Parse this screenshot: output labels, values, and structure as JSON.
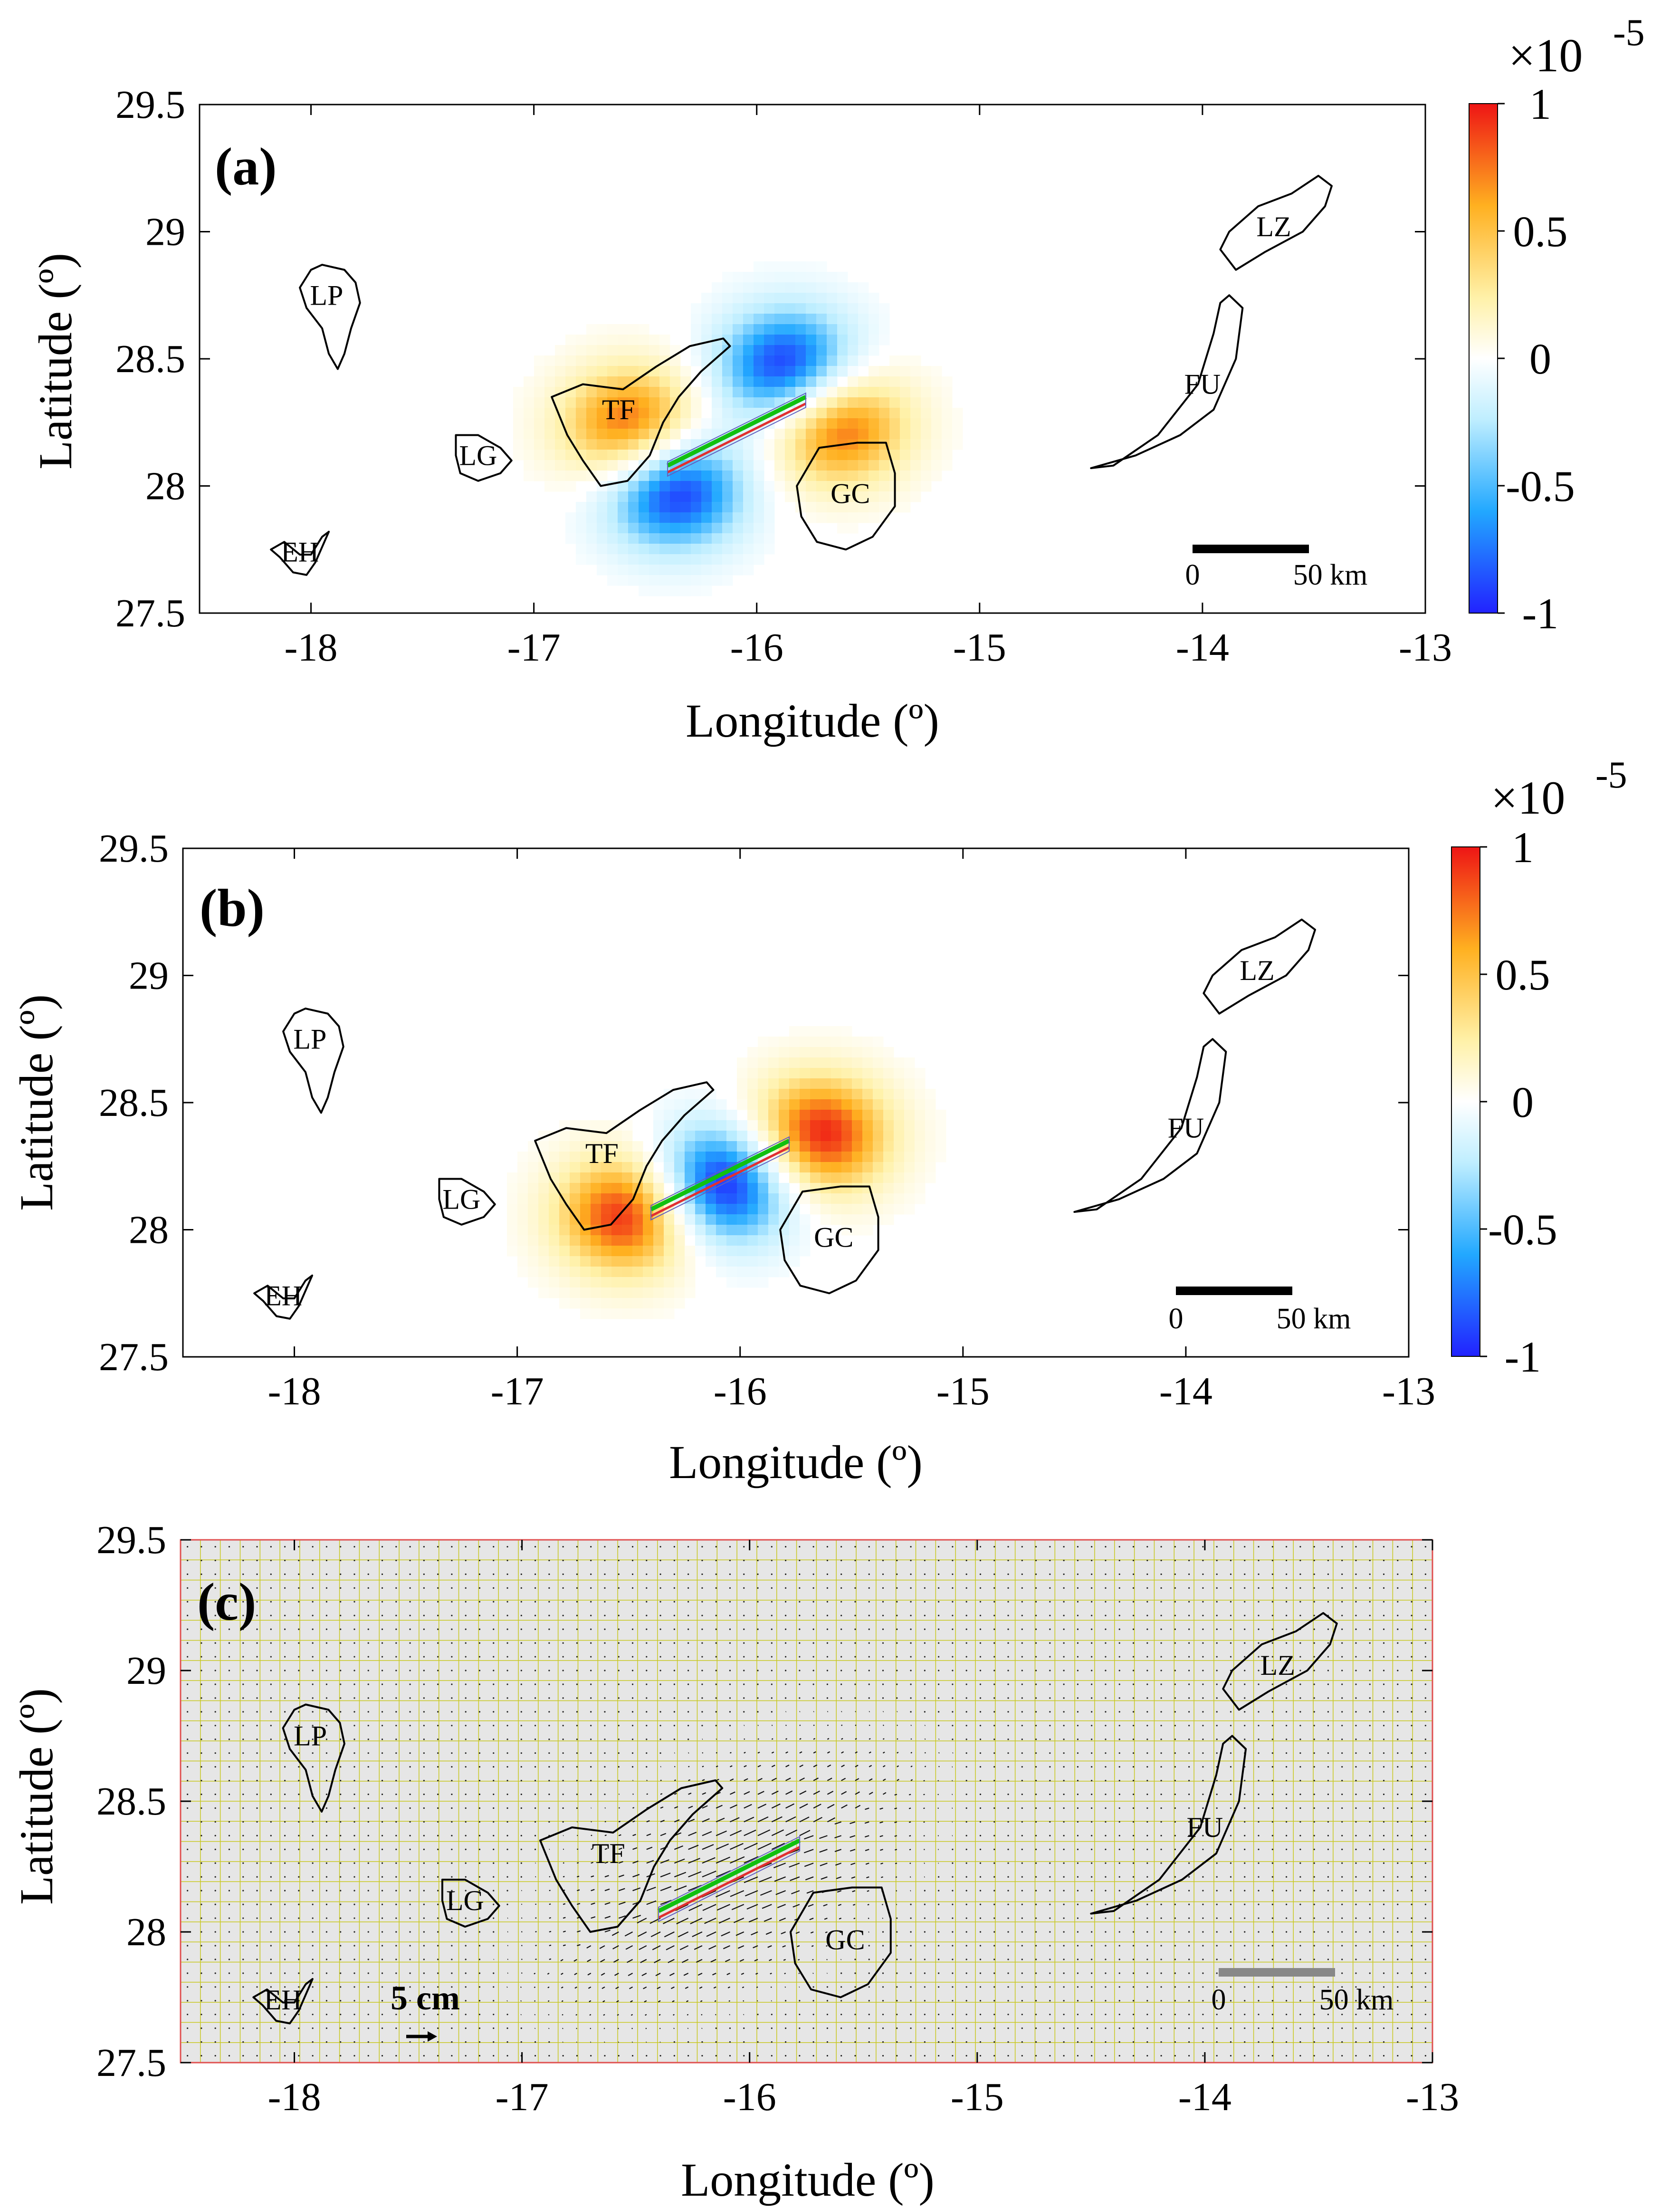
{
  "chart_data": [
    {
      "type": "heatmap",
      "panel_label": "(a)",
      "xlabel": "Longitude (º)",
      "ylabel": "Latitude (º)",
      "xlim": [
        -18.5,
        -13
      ],
      "ylim": [
        27.5,
        29.5
      ],
      "xticks": [
        "-18",
        "-17",
        "-16",
        "-15",
        "-14",
        "-13"
      ],
      "yticks": [
        "27.5",
        "28",
        "28.5",
        "29",
        "29.5"
      ],
      "colorbar": {
        "ticks": [
          "1",
          "0.5",
          "0",
          "-0.5",
          "-1"
        ],
        "multiplier": "×10",
        "exponent": "-5",
        "range": [
          -1,
          1
        ]
      },
      "islands": [
        "LP",
        "LG",
        "EH",
        "TF",
        "GC",
        "FU",
        "LZ"
      ],
      "scale_bar": {
        "start": "0",
        "end": "50 km"
      },
      "fault": {
        "start": [
          -16.4,
          28.08
        ],
        "end": [
          -15.78,
          28.35
        ]
      },
      "lobes": [
        {
          "lon": -16.38,
          "lat": 28.0,
          "sign": -1,
          "amp": 1.0
        },
        {
          "lon": -15.85,
          "lat": 28.45,
          "sign": -1,
          "amp": 1.0
        },
        {
          "lon": -16.55,
          "lat": 28.22,
          "sign": 1,
          "amp": 0.9
        },
        {
          "lon": -15.65,
          "lat": 28.25,
          "sign": 1,
          "amp": 0.9
        }
      ]
    },
    {
      "type": "heatmap",
      "panel_label": "(b)",
      "xlabel": "Longitude (º)",
      "ylabel": "Latitude (º)",
      "xlim": [
        -18.5,
        -13
      ],
      "ylim": [
        27.5,
        29.5
      ],
      "xticks": [
        "-18",
        "-17",
        "-16",
        "-15",
        "-14",
        "-13"
      ],
      "yticks": [
        "27.5",
        "28",
        "28.5",
        "29",
        "29.5"
      ],
      "colorbar": {
        "ticks": [
          "1",
          "0.5",
          "0",
          "-0.5",
          "-1"
        ],
        "multiplier": "×10",
        "exponent": "-5",
        "range": [
          -1,
          1
        ]
      },
      "islands": [
        "LP",
        "LG",
        "EH",
        "TF",
        "GC",
        "FU",
        "LZ"
      ],
      "scale_bar": {
        "start": "0",
        "end": "50 km"
      },
      "fault": {
        "start": [
          -16.4,
          28.08
        ],
        "end": [
          -15.78,
          28.35
        ]
      },
      "lobes": [
        {
          "lon": -16.08,
          "lat": 28.18,
          "sign": -1,
          "amp": 1.0
        },
        {
          "lon": -16.5,
          "lat": 28.06,
          "sign": 1,
          "amp": 0.9
        },
        {
          "lon": -15.65,
          "lat": 28.37,
          "sign": 1,
          "amp": 0.9
        }
      ]
    },
    {
      "type": "scatter",
      "panel_label": "(c)",
      "xlabel": "Longitude (º)",
      "ylabel": "Latitude (º)",
      "xlim": [
        -18.5,
        -13
      ],
      "ylim": [
        27.5,
        29.5
      ],
      "xticks": [
        "-18",
        "-17",
        "-16",
        "-15",
        "-14",
        "-13"
      ],
      "yticks": [
        "27.5",
        "28",
        "28.5",
        "29",
        "29.5"
      ],
      "islands": [
        "LP",
        "LG",
        "EH",
        "TF",
        "GC",
        "FU",
        "LZ"
      ],
      "scale_bar": {
        "start": "0",
        "end": "50 km"
      },
      "vector_scale_label": "5 cm",
      "fault": {
        "start": [
          -16.4,
          28.08
        ],
        "end": [
          -15.78,
          28.35
        ]
      }
    }
  ],
  "colors": {
    "fault_green": "#10c010",
    "fault_red": "#e03030",
    "grid": "#c8c820",
    "panel_c_bg": "#e6e6e6",
    "panel_c_frame": "#e05050"
  }
}
